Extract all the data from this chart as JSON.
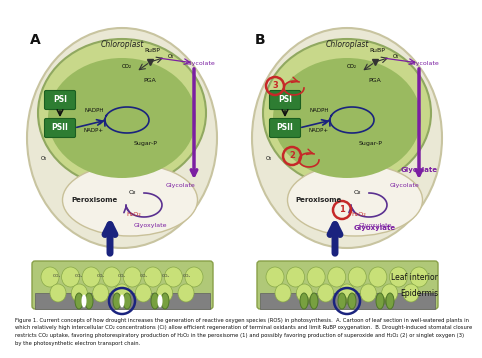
{
  "bg_color": "#ffffff",
  "panel_A": "A",
  "panel_B": "B",
  "chloroplast_label": "Chloroplast",
  "peroxisome_label": "Peroxisome",
  "leaf_interior_label": "Leaf interior",
  "epidermis_label": "Epidermis",
  "psi_label": "PSI",
  "psii_label": "PSII",
  "rubp_label": "RuBP",
  "pga_label": "PGA",
  "nadph_label": "NADPH",
  "nadp_label": "NADP+",
  "sugar_p_label": "Sugar-P",
  "glycolate_label": "Glycolate",
  "glyoxylate_label": "Glyoxylate",
  "co2_label": "CO₂",
  "o2_label": "O₂",
  "h2o2_label": "H₂O₂",
  "psi_color": "#2e7d32",
  "arrow_dark": "#1a237e",
  "arrow_purple": "#7b1fa2",
  "arrow_red": "#c62828",
  "caption": "Figure 1. Current concepts of how drought increases the generation of reactive oxygen species (ROS) in photosynthesis.  A. Cartoon of leaf section in well-watered plants in which relatively high intercellular CO₂ concentrations (Ci) allow efficient regeneration of terminal oxidants and limit RuBP oxygenation.  B. Drought-induced stomatal closure restricts CO₂ uptake, favoring photorespiratory production of H₂O₂ in the peroxisome (1) and possibly favoring production of superoxide and H₂O₂ (2) or singlet oxygen (3) by the photosynthetic electron transport chain.",
  "cell_outer_fc": "#eae8d5",
  "cell_outer_ec": "#c8c4a0",
  "chloro_outer_fc": "#c8d88a",
  "chloro_outer_ec": "#90a860",
  "chloro_inner_fc": "#9aba60",
  "perox_fc": "#f5f2e8",
  "perox_ec": "#c8c098",
  "leaf_fc": "#b0c878",
  "leaf_ec": "#88a048",
  "epi_fc": "#808080",
  "epi_ec": "#606060",
  "cell_bump_fc": "#c8e078",
  "cell_bump_ec": "#88a848",
  "guard_fc": "#78a040",
  "guard_ec": "#507828"
}
